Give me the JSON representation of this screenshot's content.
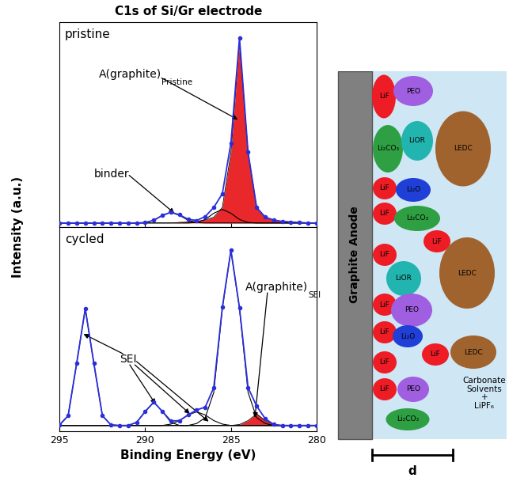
{
  "title": "C1s of Si/Gr electrode",
  "y_label": "Intensity (a.u.)",
  "chart_data": [
    {
      "type": "line",
      "title": "pristine",
      "xlim": [
        295,
        280
      ],
      "xticks": [
        295,
        290,
        285,
        280
      ],
      "ylim": [
        0,
        1.05
      ],
      "yticks": [],
      "tick_labels": false,
      "x": [
        295,
        294.5,
        294,
        293.5,
        293,
        292.5,
        292,
        291.5,
        291,
        290.5,
        290,
        289.5,
        289,
        288.5,
        288,
        287.5,
        287,
        286.5,
        286,
        285.5,
        285,
        284.5,
        284,
        283.5,
        283,
        282.5,
        282,
        281.5,
        281,
        280.5,
        280
      ],
      "series": [
        {
          "color": "#000000",
          "values": [
            0.02,
            0.02,
            0.02,
            0.02,
            0.02,
            0.02,
            0.02,
            0.02,
            0.02,
            0.02,
            0.022,
            0.034,
            0.059,
            0.075,
            0.059,
            0.034,
            0.022,
            0.02,
            0.02,
            0.02,
            0.02,
            0.02,
            0.02,
            0.02,
            0.02,
            0.02,
            0.02,
            0.02,
            0.02,
            0.02,
            0.02
          ]
        },
        {
          "color": "#000000",
          "values": [
            0.02,
            0.02,
            0.02,
            0.02,
            0.02,
            0.02,
            0.02,
            0.02,
            0.02,
            0.02,
            0.02,
            0.02,
            0.02,
            0.02,
            0.02,
            0.02,
            0.023,
            0.038,
            0.07,
            0.09,
            0.07,
            0.038,
            0.023,
            0.02,
            0.02,
            0.02,
            0.02,
            0.02,
            0.02,
            0.02,
            0.02
          ]
        },
        {
          "type": "area",
          "color": "#e8282b",
          "values": [
            0.02,
            0.02,
            0.02,
            0.02,
            0.02,
            0.02,
            0.02,
            0.02,
            0.02,
            0.02,
            0.02,
            0.02,
            0.02,
            0.02,
            0.023,
            0.025,
            0.028,
            0.035,
            0.05,
            0.1,
            0.38,
            0.95,
            0.38,
            0.1,
            0.05,
            0.035,
            0.028,
            0.025,
            0.023,
            0.02,
            0.02
          ]
        },
        {
          "color": "#2b2fd9",
          "marker": "o",
          "line_style": "solid",
          "values": [
            0.02,
            0.02,
            0.02,
            0.02,
            0.02,
            0.02,
            0.02,
            0.02,
            0.02,
            0.02,
            0.022,
            0.034,
            0.059,
            0.075,
            0.062,
            0.039,
            0.033,
            0.053,
            0.1,
            0.17,
            0.43,
            0.968,
            0.383,
            0.1,
            0.05,
            0.035,
            0.028,
            0.025,
            0.023,
            0.02,
            0.02
          ]
        }
      ],
      "annotations": [
        {
          "text": "A(graphite)",
          "subscript": "Pristine",
          "targets": [
            [
              284.6,
              0.55
            ]
          ]
        },
        {
          "text": "binder",
          "targets": [
            [
              288.3,
              0.07
            ]
          ]
        }
      ]
    },
    {
      "type": "line",
      "title": "cycled",
      "x_label": "Binding Energy (eV)",
      "xlim": [
        295,
        280
      ],
      "xticks": [
        295,
        290,
        285,
        280
      ],
      "ylim": [
        0,
        1.05
      ],
      "yticks": [],
      "tick_labels": "x",
      "x": [
        295,
        294.5,
        294,
        293.5,
        293,
        292.5,
        292,
        291.5,
        291,
        290.5,
        290,
        289.5,
        289,
        288.5,
        288,
        287.5,
        287,
        286.5,
        286,
        285.5,
        285,
        284.5,
        284,
        283.5,
        283,
        282.5,
        282,
        281.5,
        281,
        280.5,
        280
      ],
      "series": [
        {
          "color": "#000000",
          "values": [
            0.033,
            0.08,
            0.35,
            0.63,
            0.35,
            0.08,
            0.033,
            0.03,
            0.03,
            0.03,
            0.03,
            0.03,
            0.03,
            0.03,
            0.03,
            0.03,
            0.03,
            0.03,
            0.03,
            0.03,
            0.03,
            0.03,
            0.03,
            0.03,
            0.03,
            0.03,
            0.03,
            0.03,
            0.03,
            0.03,
            0.03
          ]
        },
        {
          "color": "#000000",
          "values": [
            0.03,
            0.03,
            0.03,
            0.03,
            0.03,
            0.03,
            0.03,
            0.03,
            0.03,
            0.046,
            0.102,
            0.15,
            0.102,
            0.046,
            0.03,
            0.03,
            0.03,
            0.03,
            0.03,
            0.03,
            0.03,
            0.03,
            0.03,
            0.03,
            0.03,
            0.03,
            0.03,
            0.03,
            0.03,
            0.03,
            0.03
          ]
        },
        {
          "color": "#000000",
          "values": [
            0.03,
            0.03,
            0.03,
            0.03,
            0.03,
            0.03,
            0.03,
            0.03,
            0.03,
            0.03,
            0.03,
            0.03,
            0.03,
            0.037,
            0.055,
            0.084,
            0.1,
            0.084,
            0.055,
            0.037,
            0.03,
            0.03,
            0.03,
            0.03,
            0.03,
            0.03,
            0.03,
            0.03,
            0.03,
            0.03,
            0.03
          ]
        },
        {
          "color": "#000000",
          "values": [
            0.03,
            0.03,
            0.03,
            0.03,
            0.03,
            0.03,
            0.03,
            0.03,
            0.03,
            0.03,
            0.03,
            0.03,
            0.03,
            0.03,
            0.03,
            0.03,
            0.04,
            0.07,
            0.2,
            0.63,
            0.93,
            0.63,
            0.2,
            0.07,
            0.04,
            0.03,
            0.03,
            0.03,
            0.03,
            0.03,
            0.03
          ]
        },
        {
          "type": "area",
          "color": "#e8282b",
          "values": [
            0.03,
            0.03,
            0.03,
            0.03,
            0.03,
            0.03,
            0.03,
            0.03,
            0.03,
            0.03,
            0.03,
            0.03,
            0.03,
            0.03,
            0.03,
            0.03,
            0.03,
            0.03,
            0.03,
            0.03,
            0.03,
            0.035,
            0.055,
            0.09,
            0.055,
            0.035,
            0.03,
            0.03,
            0.03,
            0.03,
            0.03
          ]
        },
        {
          "color": "#2b2fd9",
          "marker": "o",
          "line_style": "solid",
          "values": [
            0.033,
            0.08,
            0.35,
            0.63,
            0.35,
            0.08,
            0.033,
            0.03,
            0.03,
            0.046,
            0.102,
            0.15,
            0.102,
            0.053,
            0.055,
            0.084,
            0.11,
            0.124,
            0.225,
            0.637,
            0.93,
            0.635,
            0.225,
            0.13,
            0.065,
            0.035,
            0.03,
            0.03,
            0.03,
            0.03,
            0.03
          ]
        }
      ],
      "annotations": [
        {
          "text": "SEI",
          "targets": [
            [
              293.6,
              0.5
            ],
            [
              289.4,
              0.14
            ],
            [
              287.4,
              0.09
            ],
            [
              286.3,
              0.05
            ]
          ]
        },
        {
          "text": "A(graphite)",
          "subscript": "SEI",
          "targets": [
            [
              283.6,
              0.07
            ]
          ]
        }
      ]
    }
  ],
  "diagram": {
    "electrode": "Graphite Anode",
    "electrolyte": "Carbonate\nSolvents\n+\nLiPF₆",
    "thickness_label": "d",
    "blobs": [
      {
        "label": "LiF",
        "color": "#ee1c25"
      },
      {
        "label": "PEO",
        "color": "#a05ee0"
      },
      {
        "label": "Li₂CO₃",
        "color": "#2ea043"
      },
      {
        "label": "LiOR",
        "color": "#22b5b0"
      },
      {
        "label": "LEDC",
        "color": "#a0632d"
      },
      {
        "label": "LiF",
        "color": "#ee1c25"
      },
      {
        "label": "Li₂O",
        "color": "#1f3fd6"
      },
      {
        "label": "LiF",
        "color": "#ee1c25"
      },
      {
        "label": "Li₂CO₃",
        "color": "#2ea043"
      },
      {
        "label": "LiF",
        "color": "#ee1c25"
      },
      {
        "label": "LiF",
        "color": "#ee1c25"
      },
      {
        "label": "LiOR",
        "color": "#22b5b0"
      },
      {
        "label": "LEDC",
        "color": "#a0632d"
      },
      {
        "label": "LiF",
        "color": "#ee1c25"
      },
      {
        "label": "PEO",
        "color": "#a05ee0"
      },
      {
        "label": "LiF",
        "color": "#ee1c25"
      },
      {
        "label": "Li₂O",
        "color": "#1f3fd6"
      },
      {
        "label": "LiF",
        "color": "#ee1c25"
      },
      {
        "label": "LEDC",
        "color": "#a0632d"
      },
      {
        "label": "LiF",
        "color": "#ee1c25"
      },
      {
        "label": "LiF",
        "color": "#ee1c25"
      },
      {
        "label": "PEO",
        "color": "#a05ee0"
      },
      {
        "label": "Li₂CO₃",
        "color": "#2ea043"
      }
    ]
  }
}
